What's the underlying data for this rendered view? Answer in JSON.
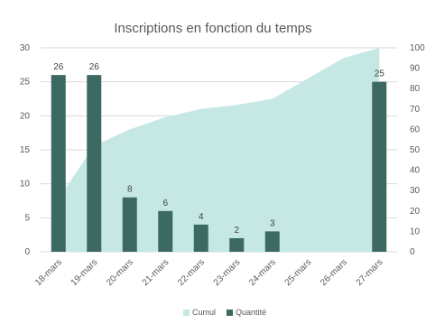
{
  "chart_data": {
    "type": "bar",
    "title": "Inscriptions en fonction du temps",
    "categories": [
      "18-mars",
      "19-mars",
      "20-mars",
      "21-mars",
      "22-mars",
      "23-mars",
      "24-mars",
      "25-mars",
      "26-mars",
      "27-mars"
    ],
    "series": [
      {
        "name": "Cumul",
        "type": "area",
        "axis": "right",
        "color": "#c5e8e5",
        "values": [
          26,
          52,
          60,
          66,
          70,
          72,
          75,
          85,
          95,
          100
        ]
      },
      {
        "name": "Quantité",
        "type": "bar",
        "axis": "left",
        "color": "#3d6963",
        "values": [
          26,
          26,
          8,
          6,
          4,
          2,
          3,
          null,
          null,
          25
        ],
        "data_labels": [
          "26",
          "26",
          "8",
          "6",
          "4",
          "2",
          "3",
          "",
          "",
          "25"
        ]
      }
    ],
    "y_left": {
      "ylim": [
        0,
        30
      ],
      "ticks": [
        0,
        5,
        10,
        15,
        20,
        25,
        30
      ]
    },
    "y_right": {
      "ylim": [
        0,
        100
      ],
      "ticks": [
        0,
        10,
        20,
        30,
        40,
        50,
        60,
        70,
        80,
        90,
        100
      ]
    },
    "grid": true,
    "legend": "bottom"
  },
  "colors": {
    "grid": "#d9d9d9",
    "axis_text": "#595959"
  }
}
